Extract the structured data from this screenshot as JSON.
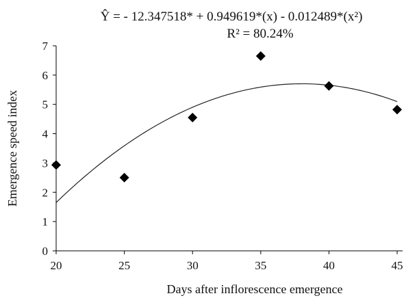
{
  "chart_data": {
    "type": "scatter",
    "equation": "Ŷ = - 12.347518* + 0.949619*(x) - 0.012489*(x²)",
    "r_squared": "R² = 80.24%",
    "xlabel": "Days after inflorescence emergence",
    "ylabel": "Emergence speed index",
    "xlim": [
      20,
      45
    ],
    "ylim": [
      0,
      7
    ],
    "x_ticks": [
      "20",
      "25",
      "30",
      "35",
      "40",
      "45"
    ],
    "y_ticks": [
      "0",
      "1",
      "2",
      "3",
      "4",
      "5",
      "6",
      "7"
    ],
    "grid": false,
    "legend": "none",
    "marker": "diamond",
    "point_color": "#000000",
    "series": [
      {
        "x": [
          20,
          25,
          30,
          35,
          40,
          45
        ],
        "y": [
          2.93,
          2.5,
          4.55,
          6.65,
          5.63,
          4.82
        ]
      }
    ],
    "trendline": {
      "kind": "quadratic",
      "intercept": -12.347518,
      "b1": 0.949619,
      "b2": -0.012489
    }
  }
}
